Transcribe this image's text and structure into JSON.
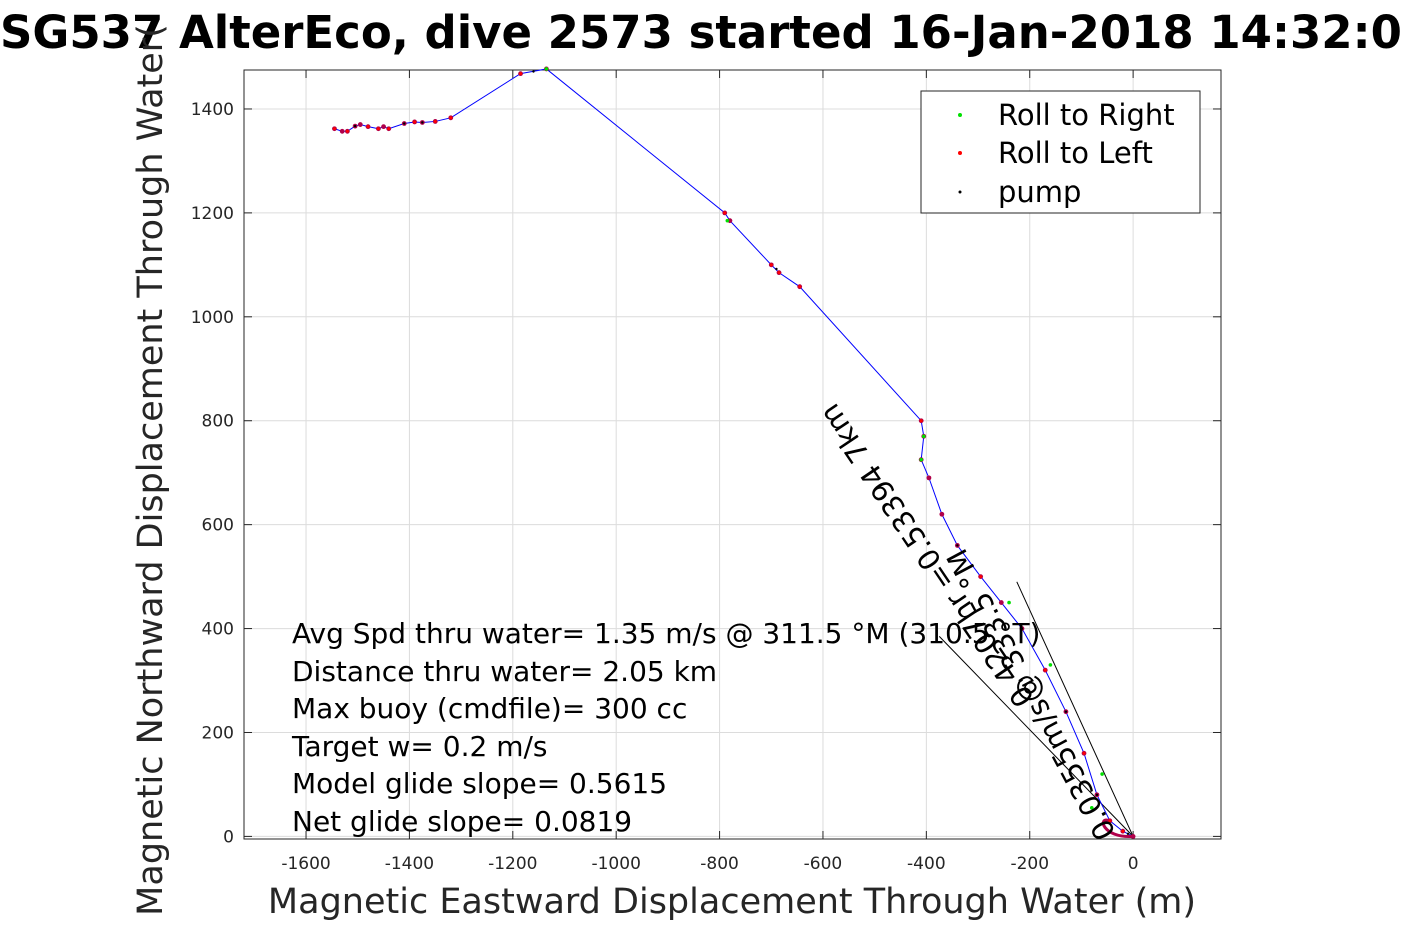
{
  "chart_data": {
    "type": "scatter",
    "title": "SG537 AlterEco, dive 2573 started 16-Jan-2018 14:32:0",
    "xlabel": "Magnetic Eastward Displacement Through Water (m)",
    "ylabel": "Magnetic Northward Displacement Through Water(",
    "xlim": [
      -1720,
      170
    ],
    "ylim": [
      -5,
      1475
    ],
    "xticks": [
      -1600,
      -1400,
      -1200,
      -1000,
      -800,
      -600,
      -400,
      -200,
      0
    ],
    "yticks": [
      0,
      200,
      400,
      600,
      800,
      1000,
      1200,
      1400
    ],
    "xtick_labels": [
      "-1600",
      "-1400",
      "-1200",
      "-1000",
      "-800",
      "-600",
      "-400",
      "-200",
      "0"
    ],
    "ytick_labels": [
      "0",
      "200",
      "400",
      "600",
      "800",
      "1000",
      "1200",
      "1400"
    ],
    "grid": true,
    "legend_placement": "top-right",
    "series": [
      {
        "name": "Roll to Right",
        "color": "#00e000"
      },
      {
        "name": "Roll to Left",
        "color": "#ff0000"
      },
      {
        "name": "pump",
        "color": "#000000"
      }
    ],
    "track_color": "#0000ff",
    "marker_color": "#b0004a",
    "track": [
      [
        0,
        0
      ],
      [
        -20,
        10
      ],
      [
        -45,
        30
      ],
      [
        -70,
        80
      ],
      [
        -95,
        160
      ],
      [
        -130,
        240
      ],
      [
        -170,
        320
      ],
      [
        -215,
        400
      ],
      [
        -255,
        450
      ],
      [
        -295,
        500
      ],
      [
        -340,
        560
      ],
      [
        -370,
        620
      ],
      [
        -395,
        690
      ],
      [
        -410,
        725
      ],
      [
        -405,
        770
      ],
      [
        -410,
        800
      ],
      [
        -645,
        1058
      ],
      [
        -685,
        1085
      ],
      [
        -700,
        1100
      ],
      [
        -780,
        1185
      ],
      [
        -790,
        1200
      ],
      [
        -1135,
        1477
      ],
      [
        -1185,
        1468
      ],
      [
        -1320,
        1383
      ],
      [
        -1350,
        1376
      ],
      [
        -1375,
        1374
      ],
      [
        -1390,
        1375
      ],
      [
        -1410,
        1372
      ],
      [
        -1440,
        1362
      ],
      [
        -1450,
        1366
      ],
      [
        -1460,
        1362
      ],
      [
        -1480,
        1366
      ],
      [
        -1495,
        1370
      ],
      [
        -1505,
        1367
      ],
      [
        -1520,
        1357
      ],
      [
        -1530,
        1357
      ],
      [
        -1545,
        1362
      ]
    ],
    "roll_right": [
      [
        -80,
        55
      ],
      [
        -405,
        770
      ],
      [
        -410,
        725
      ],
      [
        -785,
        1185
      ],
      [
        -1135,
        1477
      ],
      [
        -240,
        450
      ],
      [
        -160,
        330
      ],
      [
        -60,
        120
      ]
    ],
    "roll_left": [
      [
        -20,
        10
      ],
      [
        -45,
        30
      ],
      [
        -95,
        160
      ],
      [
        -170,
        320
      ],
      [
        -295,
        500
      ],
      [
        -410,
        800
      ],
      [
        -645,
        1058
      ],
      [
        -700,
        1100
      ],
      [
        -790,
        1200
      ],
      [
        -1185,
        1468
      ],
      [
        -1320,
        1383
      ],
      [
        -1390,
        1375
      ],
      [
        -1440,
        1362
      ],
      [
        -1480,
        1366
      ],
      [
        -1520,
        1357
      ],
      [
        -1545,
        1362
      ],
      [
        -685,
        1085
      ],
      [
        -1460,
        1362
      ],
      [
        -1350,
        1376
      ]
    ],
    "pump": [
      [
        -10,
        5
      ],
      [
        -70,
        80
      ],
      [
        -130,
        240
      ],
      [
        -215,
        400
      ],
      [
        -340,
        560
      ],
      [
        -690,
        1092
      ],
      [
        -1160,
        1472
      ],
      [
        -1375,
        1374
      ],
      [
        -1505,
        1367
      ],
      [
        -1410,
        1372
      ]
    ],
    "current_lines": [
      {
        "from": [
          0,
          0
        ],
        "to": [
          -375,
          385
        ]
      },
      {
        "from": [
          0,
          0
        ],
        "to": [
          -225,
          490
        ]
      }
    ],
    "annotations": [
      "Avg Spd thru water=  1.35 m/s @ 311.5 °M (310.5 °T)",
      "Distance thru water=  2.05 km",
      "Max buoy (cmdfile)= 300 cc",
      "Target w= 0.2 m/s",
      "Model glide slope= 0.5615",
      "Net glide slope= 0.0819"
    ],
    "rotated_labels": [
      "0.53394 7km",
      "0.4207hr =0.53394 7km",
      "0.0355m/s@ 333.5 °M"
    ]
  }
}
